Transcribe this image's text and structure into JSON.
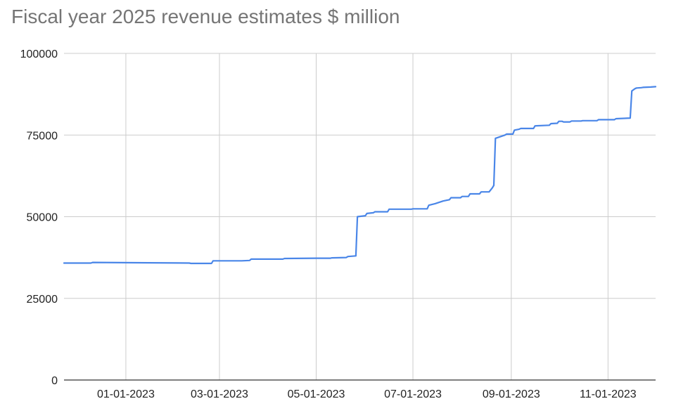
{
  "chart_data": {
    "type": "line",
    "title": "Fiscal year 2025 revenue estimates $ million",
    "xlabel": "",
    "ylabel": "",
    "ylim": [
      0,
      100000
    ],
    "xlim": [
      "2022-11-23",
      "2023-12-01"
    ],
    "grid": true,
    "legend": "none",
    "y_ticks": [
      0,
      25000,
      50000,
      75000,
      100000
    ],
    "y_tick_labels": [
      "0",
      "25000",
      "50000",
      "75000",
      "100000"
    ],
    "x_ticks": [
      "2023-01-01",
      "2023-03-01",
      "2023-05-01",
      "2023-07-01",
      "2023-09-01",
      "2023-11-01"
    ],
    "x_tick_labels": [
      "01-01-2023",
      "03-01-2023",
      "05-01-2023",
      "07-01-2023",
      "09-01-2023",
      "11-01-2023"
    ],
    "series": [
      {
        "color": "#4a86e8",
        "x": [
          "2022-11-23",
          "2022-12-10",
          "2022-12-11",
          "2023-01-15",
          "2023-02-10",
          "2023-02-11",
          "2023-02-24",
          "2023-02-25",
          "2023-03-15",
          "2023-03-20",
          "2023-03-21",
          "2023-04-10",
          "2023-04-11",
          "2023-05-01",
          "2023-05-10",
          "2023-05-11",
          "2023-05-20",
          "2023-05-21",
          "2023-05-26",
          "2023-05-27",
          "2023-06-01",
          "2023-06-02",
          "2023-06-06",
          "2023-06-07",
          "2023-06-15",
          "2023-06-16",
          "2023-06-30",
          "2023-07-01",
          "2023-07-10",
          "2023-07-11",
          "2023-07-15",
          "2023-07-20",
          "2023-07-24",
          "2023-07-25",
          "2023-07-31",
          "2023-08-01",
          "2023-08-05",
          "2023-08-06",
          "2023-08-12",
          "2023-08-13",
          "2023-08-18",
          "2023-08-19",
          "2023-08-20",
          "2023-08-21",
          "2023-08-22",
          "2023-08-28",
          "2023-08-29",
          "2023-09-02",
          "2023-09-03",
          "2023-09-06",
          "2023-09-07",
          "2023-09-15",
          "2023-09-16",
          "2023-09-25",
          "2023-09-26",
          "2023-09-30",
          "2023-10-01",
          "2023-10-03",
          "2023-10-04",
          "2023-10-08",
          "2023-10-09",
          "2023-10-15",
          "2023-10-16",
          "2023-10-25",
          "2023-10-26",
          "2023-11-05",
          "2023-11-06",
          "2023-11-15",
          "2023-11-16",
          "2023-11-18",
          "2023-11-19",
          "2023-11-22",
          "2023-11-23",
          "2023-11-28",
          "2023-12-01"
        ],
        "values": [
          35800,
          35800,
          36000,
          35900,
          35800,
          35700,
          35700,
          36500,
          36500,
          36600,
          37000,
          37000,
          37200,
          37300,
          37300,
          37400,
          37500,
          37800,
          38000,
          50000,
          50300,
          51000,
          51200,
          51500,
          51500,
          52300,
          52300,
          52400,
          52400,
          53500,
          54000,
          54800,
          55200,
          55800,
          55800,
          56200,
          56200,
          57000,
          57000,
          57600,
          57600,
          58200,
          58800,
          59600,
          74000,
          75000,
          75300,
          75300,
          76500,
          76800,
          77000,
          77000,
          77800,
          78000,
          78500,
          78600,
          79200,
          79200,
          79000,
          79000,
          79300,
          79300,
          79400,
          79400,
          79700,
          79700,
          80000,
          80200,
          88500,
          89200,
          89400,
          89500,
          89600,
          89700,
          89800
        ]
      }
    ]
  }
}
